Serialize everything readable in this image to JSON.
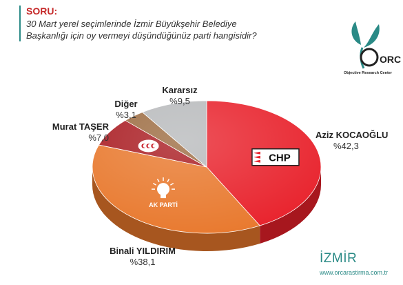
{
  "header": {
    "label": "SORU:",
    "question_line1": "30 Mart yerel seçimlerinde İzmir Büyükşehir Belediye",
    "question_line2": "Başkanlığı için oy vermeyi düşündüğünüz parti hangisidir?"
  },
  "logo": {
    "text": "ORC",
    "caption": "Objective Research Center"
  },
  "footer": {
    "region": "İZMİR",
    "website": "www.orcarastirma.com.tr"
  },
  "party_badges": {
    "chp": "CHP",
    "akp": "AK PARTİ"
  },
  "colors": {
    "chp": "#e8202a",
    "akp": "#e8772b",
    "mhp": "#a8191f",
    "diger": "#9b6a3f",
    "kararsiz": "#b7b9bb",
    "accent": "#2a8a86"
  },
  "chart_data": {
    "type": "pie",
    "title": "",
    "slices": [
      {
        "name": "Aziz KOCAOĞLU",
        "value": 42.3,
        "label": "%42,3"
      },
      {
        "name": "Binali YILDIRIM",
        "value": 38.1,
        "label": "%38,1"
      },
      {
        "name": "Murat TAŞER",
        "value": 7.0,
        "label": "%7,0"
      },
      {
        "name": "Diğer",
        "value": 3.1,
        "label": "%3,1"
      },
      {
        "name": "Kararsız",
        "value": 9.5,
        "label": "%9,5"
      }
    ]
  }
}
